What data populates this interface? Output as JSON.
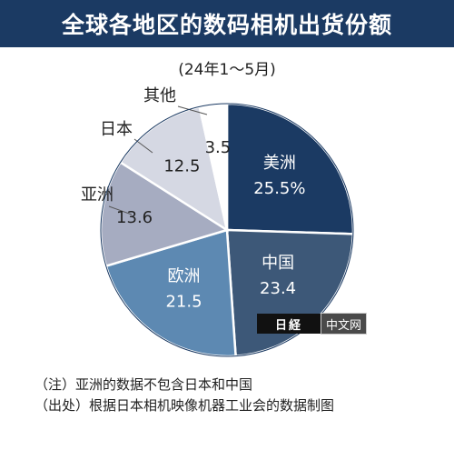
{
  "header": {
    "title": "全球各地区的数码相机出货份额",
    "subtitle": "(24年1～5月)"
  },
  "chart_data": {
    "type": "pie",
    "title": "全球各地区的数码相机出货份额",
    "subtitle": "(24年1～5月)",
    "start": "12 o'clock, clockwise",
    "slices": [
      {
        "name": "美洲",
        "value": 25.5,
        "label": "25.5%",
        "color": "#1b3a63",
        "text_color": "#ffffff"
      },
      {
        "name": "中国",
        "value": 23.4,
        "label": "23.4",
        "color": "#3d5878",
        "text_color": "#ffffff"
      },
      {
        "name": "欧洲",
        "value": 21.5,
        "label": "21.5",
        "color": "#5d89b2",
        "text_color": "#ffffff"
      },
      {
        "name": "亚洲",
        "value": 13.6,
        "label": "13.6",
        "color": "#a6acc1",
        "text_color": "#222222"
      },
      {
        "name": "日本",
        "value": 12.5,
        "label": "12.5",
        "color": "#d5d8e3",
        "text_color": "#222222"
      },
      {
        "name": "其他",
        "value": 3.5,
        "label": "3.5",
        "color": "#ffffff",
        "text_color": "#222222"
      }
    ]
  },
  "watermark": {
    "logo": "日経",
    "text": "中文网"
  },
  "notes": [
    "（注）亚洲的数据不包含日本和中国",
    "（出处）根据日本相机映像机器工业会的数据制图"
  ]
}
